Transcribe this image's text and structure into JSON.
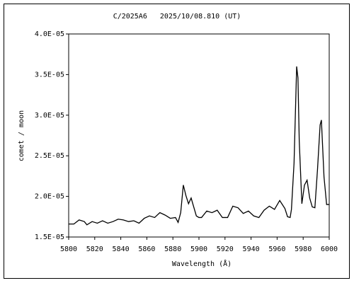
{
  "chart_data": {
    "type": "line",
    "title": "C/2025A6   2025/10/08.810 (UT)",
    "x_label": "Wavelength (Å)",
    "y_label": "comet / moon",
    "xlim": [
      5800,
      6000
    ],
    "xticks": [
      5800,
      5820,
      5840,
      5860,
      5880,
      5900,
      5920,
      5940,
      5960,
      5980,
      6000
    ],
    "ylim": [
      1.5e-05,
      4e-05
    ],
    "yticks": [
      {
        "value": 1.5e-05,
        "label": "1.5E-05"
      },
      {
        "value": 2e-05,
        "label": "2.0E-05"
      },
      {
        "value": 2.5e-05,
        "label": "2.5E-05"
      },
      {
        "value": 3e-05,
        "label": "3.0E-05"
      },
      {
        "value": 3.5e-05,
        "label": "3.5E-05"
      },
      {
        "value": 4e-05,
        "label": "4.0E-05"
      }
    ],
    "grid": false,
    "x": [
      5800,
      5804,
      5808,
      5812,
      5814,
      5818,
      5822,
      5826,
      5830,
      5834,
      5838,
      5842,
      5846,
      5850,
      5854,
      5858,
      5862,
      5866,
      5870,
      5874,
      5878,
      5882,
      5884,
      5886,
      5888,
      5890,
      5892,
      5894,
      5896,
      5898,
      5900,
      5902,
      5906,
      5910,
      5914,
      5918,
      5922,
      5926,
      5930,
      5934,
      5938,
      5942,
      5946,
      5950,
      5954,
      5958,
      5962,
      5966,
      5968,
      5970,
      5971,
      5973,
      5975,
      5976,
      5977,
      5979,
      5981,
      5983,
      5985,
      5987,
      5989,
      5991,
      5993,
      5994,
      5996,
      5998,
      6000
    ],
    "series": [
      {
        "color": "#000000",
        "values": [
          1.66e-05,
          1.66e-05,
          1.71e-05,
          1.69e-05,
          1.65e-05,
          1.69e-05,
          1.67e-05,
          1.7e-05,
          1.67e-05,
          1.69e-05,
          1.72e-05,
          1.71e-05,
          1.69e-05,
          1.7e-05,
          1.67e-05,
          1.73e-05,
          1.76e-05,
          1.74e-05,
          1.8e-05,
          1.77e-05,
          1.73e-05,
          1.74e-05,
          1.68e-05,
          1.8e-05,
          2.14e-05,
          2.01e-05,
          1.91e-05,
          1.98e-05,
          1.87e-05,
          1.76e-05,
          1.74e-05,
          1.74e-05,
          1.82e-05,
          1.8e-05,
          1.83e-05,
          1.74e-05,
          1.74e-05,
          1.88e-05,
          1.86e-05,
          1.79e-05,
          1.82e-05,
          1.76e-05,
          1.74e-05,
          1.83e-05,
          1.88e-05,
          1.84e-05,
          1.95e-05,
          1.85e-05,
          1.75e-05,
          1.74e-05,
          1.84e-05,
          2.41e-05,
          3.6e-05,
          3.46e-05,
          2.68e-05,
          1.91e-05,
          2.14e-05,
          2.2e-05,
          1.98e-05,
          1.87e-05,
          1.86e-05,
          2.33e-05,
          2.88e-05,
          2.94e-05,
          2.24e-05,
          1.9e-05,
          1.9e-05
        ]
      }
    ]
  }
}
